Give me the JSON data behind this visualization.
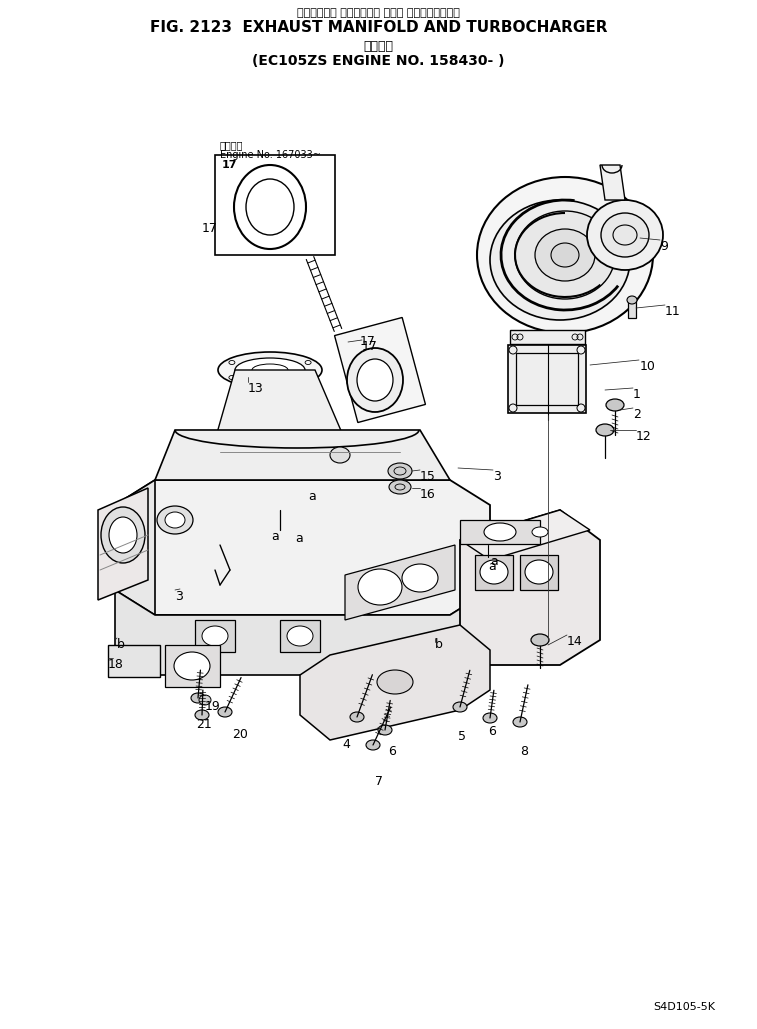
{
  "title_line1": "エキゾースト マニホールド および ターボチャージャ",
  "title_line2": "FIG. 2123  EXHAUST MANIFOLD AND TURBOCHARGER",
  "title_line3": "適用号機",
  "title_line4": "(EC105ZS ENGINE NO. 158430- )",
  "footer": "S4D105-5K",
  "bg": "#ffffff",
  "ink": "#000000",
  "fig_w": 7.57,
  "fig_h": 10.29,
  "dpi": 100,
  "labels": [
    [
      "1",
      633,
      388
    ],
    [
      "2",
      633,
      408
    ],
    [
      "3",
      493,
      470
    ],
    [
      "3",
      175,
      590
    ],
    [
      "4",
      342,
      738
    ],
    [
      "5",
      458,
      730
    ],
    [
      "6",
      388,
      745
    ],
    [
      "6",
      488,
      725
    ],
    [
      "7",
      375,
      775
    ],
    [
      "8",
      520,
      745
    ],
    [
      "9",
      660,
      240
    ],
    [
      "10",
      640,
      360
    ],
    [
      "11",
      665,
      305
    ],
    [
      "12",
      636,
      430
    ],
    [
      "13",
      248,
      382
    ],
    [
      "14",
      567,
      635
    ],
    [
      "15",
      420,
      470
    ],
    [
      "16",
      420,
      488
    ],
    [
      "17",
      362,
      340
    ],
    [
      "17",
      202,
      222
    ],
    [
      "18",
      108,
      658
    ],
    [
      "19",
      205,
      700
    ],
    [
      "20",
      232,
      728
    ],
    [
      "21",
      196,
      718
    ],
    [
      "a",
      308,
      490
    ],
    [
      "a",
      488,
      560
    ],
    [
      "b",
      117,
      638
    ],
    [
      "b",
      435,
      638
    ]
  ]
}
